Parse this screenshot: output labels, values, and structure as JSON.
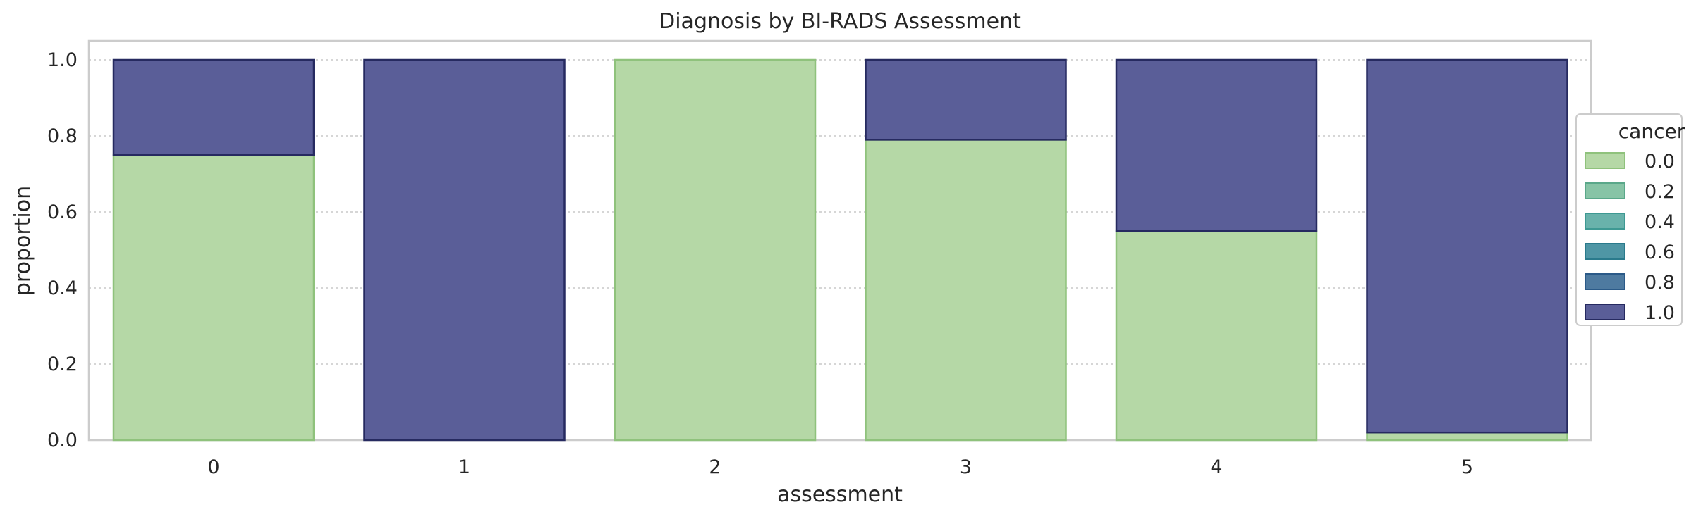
{
  "chart_data": {
    "type": "bar",
    "stacked": true,
    "normalized": true,
    "title": "Diagnosis by BI-RADS Assessment",
    "xlabel": "assessment",
    "ylabel": "proportion",
    "categories": [
      "0",
      "1",
      "2",
      "3",
      "4",
      "5"
    ],
    "ylim": [
      0,
      1.05
    ],
    "yticks": [
      "0.0",
      "0.2",
      "0.4",
      "0.6",
      "0.8",
      "1.0"
    ],
    "grid": "y-dotted",
    "series": [
      {
        "name": "0.0",
        "values": [
          0.75,
          0.0,
          1.0,
          0.79,
          0.55,
          0.02
        ],
        "color": "#b5d8a6",
        "edge": "#8fc27c"
      },
      {
        "name": "1.0",
        "values": [
          0.25,
          1.0,
          0.0,
          0.21,
          0.45,
          0.98
        ],
        "color": "#5a5e98",
        "edge": "#262a60"
      }
    ],
    "legend": {
      "title": "cancer",
      "placement": "right-center",
      "entries": [
        {
          "label": "0.0",
          "color": "#b5d8a6",
          "edge": "#8fc27c"
        },
        {
          "label": "0.2",
          "color": "#87c4a6",
          "edge": "#5aa88a"
        },
        {
          "label": "0.4",
          "color": "#69b2ab",
          "edge": "#3e9993"
        },
        {
          "label": "0.6",
          "color": "#4f96a5",
          "edge": "#2a7a8c"
        },
        {
          "label": "0.8",
          "color": "#4e7aa0",
          "edge": "#2b5a88"
        },
        {
          "label": "1.0",
          "color": "#5a5e98",
          "edge": "#262a60"
        }
      ]
    }
  }
}
